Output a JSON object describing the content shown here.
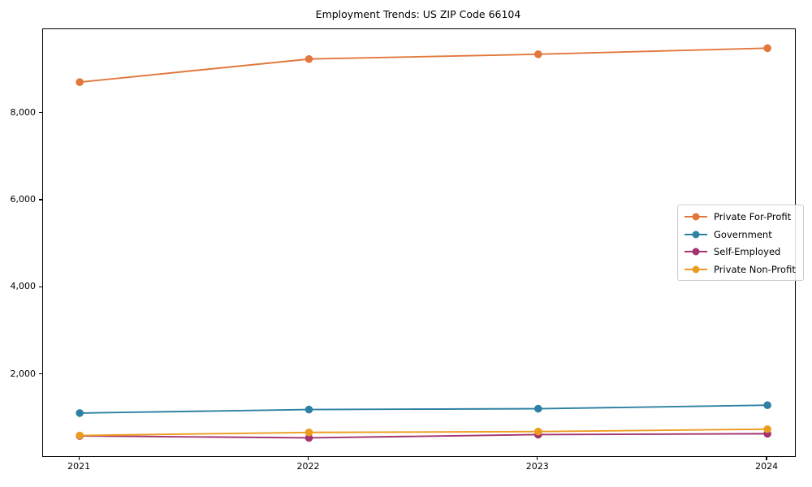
{
  "title": "Employment Trends: US ZIP Code 66104",
  "chart_data": {
    "type": "line",
    "title": "Employment Trends: US ZIP Code 66104",
    "xlabel": "",
    "ylabel": "",
    "x": [
      2021,
      2022,
      2023,
      2024
    ],
    "x_tick_labels": [
      "2021",
      "2022",
      "2023",
      "2024"
    ],
    "y_ticks": [
      2000,
      4000,
      6000,
      8000
    ],
    "y_tick_labels": [
      "2,000",
      "4,000",
      "6,000",
      "8,000"
    ],
    "xlim": [
      2020.84,
      2024.12
    ],
    "ylim": [
      130,
      9935
    ],
    "grid": false,
    "marker": "circle",
    "legend_position": "center-right",
    "series": [
      {
        "name": "Private For-Profit",
        "color": "#e2773c",
        "values": [
          8720,
          9250,
          9360,
          9500
        ]
      },
      {
        "name": "Government",
        "color": "#2d81a2",
        "values": [
          1120,
          1200,
          1220,
          1300
        ]
      },
      {
        "name": "Self-Employed",
        "color": "#a23370",
        "values": [
          595,
          550,
          625,
          645
        ]
      },
      {
        "name": "Private Non-Profit",
        "color": "#ec9c20",
        "values": [
          605,
          675,
          695,
          750
        ]
      }
    ]
  }
}
